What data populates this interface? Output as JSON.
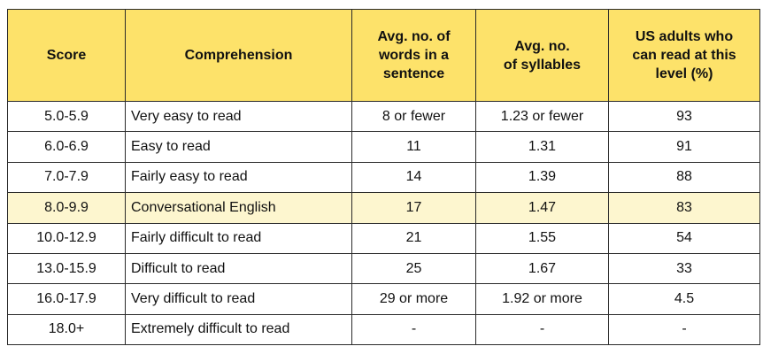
{
  "table": {
    "headers": [
      "Score",
      "Comprehension",
      "Avg. no. of\nwords in a\nsentence",
      "Avg. no.\nof syllables",
      "US adults who\ncan read at this\nlevel (%)"
    ],
    "rows": [
      {
        "score": "5.0-5.9",
        "comprehension": "Very easy to read",
        "words": "8 or fewer",
        "syllables": "1.23 or fewer",
        "percent": "93"
      },
      {
        "score": "6.0-6.9",
        "comprehension": "Easy to read",
        "words": "11",
        "syllables": "1.31",
        "percent": "91"
      },
      {
        "score": "7.0-7.9",
        "comprehension": "Fairly easy to read",
        "words": "14",
        "syllables": "1.39",
        "percent": "88"
      },
      {
        "score": "8.0-9.9",
        "comprehension": "Conversational English",
        "words": "17",
        "syllables": "1.47",
        "percent": "83"
      },
      {
        "score": "10.0-12.9",
        "comprehension": "Fairly difficult to read",
        "words": "21",
        "syllables": "1.55",
        "percent": "54"
      },
      {
        "score": "13.0-15.9",
        "comprehension": "Difficult to read",
        "words": "25",
        "syllables": "1.67",
        "percent": "33"
      },
      {
        "score": "16.0-17.9",
        "comprehension": "Very difficult to read",
        "words": "29 or more",
        "syllables": "1.92 or more",
        "percent": "4.5"
      },
      {
        "score": "18.0+",
        "comprehension": "Extremely difficult to read",
        "words": "-",
        "syllables": "-",
        "percent": "-"
      }
    ],
    "highlight_row_index": 3,
    "colors": {
      "header_bg": "#fde26a",
      "highlight_bg": "#fdf6cf",
      "border": "#2a2a2a"
    }
  }
}
